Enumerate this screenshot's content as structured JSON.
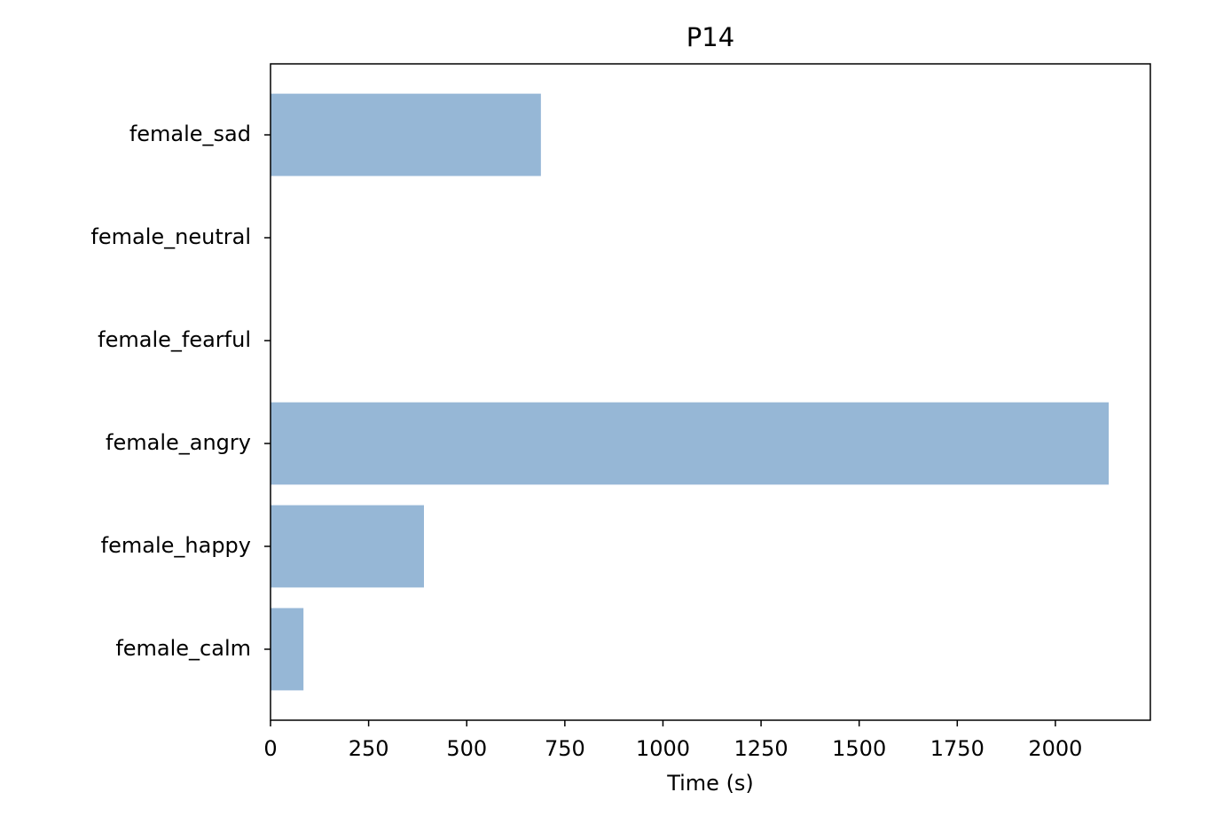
{
  "chart_data": {
    "type": "barh",
    "title": "P14",
    "x_label": "Time (s)",
    "categories": [
      "female_calm",
      "female_happy",
      "female_angry",
      "female_fearful",
      "female_neutral",
      "female_sad"
    ],
    "values": [
      84,
      391,
      2136,
      0,
      0,
      689
    ],
    "color": "#96b7d6",
    "xlim": [
      0,
      2242
    ],
    "xticks": [
      0,
      250,
      500,
      750,
      1000,
      1250,
      1500,
      1750,
      2000
    ]
  }
}
